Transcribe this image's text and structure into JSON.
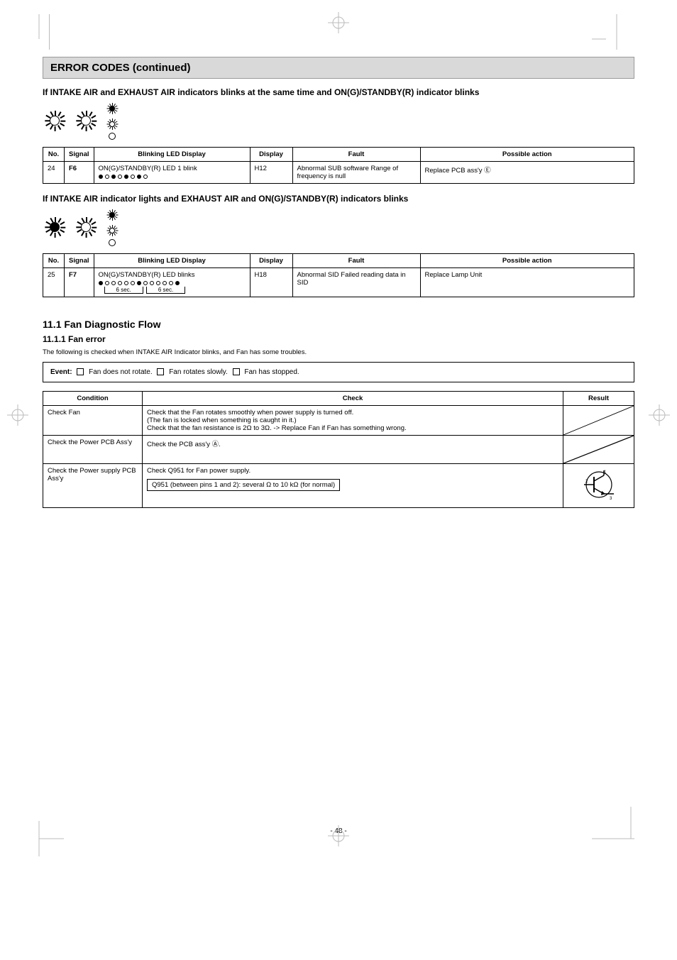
{
  "page": {
    "title": "ERROR CODES (continued)",
    "footer_page_number": "- 48 -"
  },
  "cropmarks_color": "#bbbbbb",
  "section1": {
    "heading": "If INTAKE AIR and EXHAUST AIR indicators blinks at the same time and ON(G)/STANDBY(R) indicator blinks",
    "columns": [
      "No.",
      "Signal",
      "Blinking LED Display",
      "Display",
      "Fault",
      "Possible action"
    ],
    "row": {
      "no": "24",
      "sig": "F6",
      "blink_text": "ON(G)/STANDBY(R) LED 1 blink",
      "display": "H12",
      "fault": "Abnormal SUB software Range of frequency is null",
      "action": "Replace PCB ass'y  Ⓔ"
    }
  },
  "section2": {
    "heading": "If INTAKE AIR indicator lights and EXHAUST AIR and ON(G)/STANDBY(R) indicators blinks",
    "columns": [
      "No.",
      "Signal",
      "Blinking LED Display",
      "Display",
      "Fault",
      "Possible action"
    ],
    "seq_labels": {
      "a": "6 sec.",
      "b": "6 sec."
    },
    "row": {
      "no": "25",
      "sig": "F7",
      "blink_text": "ON(G)/STANDBY(R) LED blinks",
      "display": "H18",
      "fault": "Abnormal SID Failed reading data in SID",
      "action": "Replace Lamp Unit"
    }
  },
  "diagnosis": {
    "heading": "11.1 Fan Diagnostic Flow",
    "subheading": "11.1.1 Fan error",
    "event_prefix": "Event:",
    "event_cases": [
      "Fan does not rotate.",
      "Fan rotates slowly.",
      "Fan has stopped."
    ],
    "table": {
      "headers": [
        "Condition",
        "Check",
        "Result"
      ],
      "rows": [
        {
          "condition": "Check Fan",
          "checks": [
            "Check that the Fan rotates smoothly when power supply is turned off.",
            "(The fan is locked when something is caught in it.)",
            "Check that the fan resistance is 2Ω to 3Ω. -> Replace Fan if Fan has something wrong."
          ],
          "result_type": "slash"
        },
        {
          "condition": "Check the Power PCB Ass'y",
          "checks": [
            "Check the PCB ass'y Ⓐ."
          ],
          "result_type": "slash"
        },
        {
          "condition": "Check the Power supply PCB Ass'y",
          "checks": [
            "Check Q951 for Fan power supply.",
            "",
            "Q951 (between pins 1 and 2): several Ω to 10 kΩ (for normal)"
          ],
          "result_type": "diagram"
        }
      ]
    }
  },
  "colors": {
    "grey_bar": "#d9d9d9",
    "border": "#000000",
    "text": "#000000",
    "cropmark": "#bbbbbb"
  }
}
